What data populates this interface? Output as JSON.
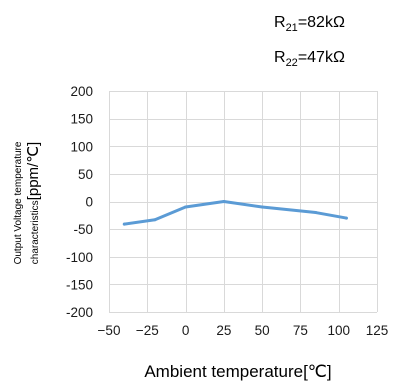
{
  "chart_data": {
    "type": "line",
    "annotations": [
      {
        "main": "R",
        "sub": "21",
        "rest": "=82kΩ"
      },
      {
        "main": "R",
        "sub": "22",
        "rest": "=47kΩ"
      }
    ],
    "xlabel": "Ambient temperature[℃]",
    "ylabel_line1": "Output Voltage temperature",
    "ylabel_line2_small": "characteristics",
    "ylabel_line2_large": "[ppm/℃]",
    "xlim": [
      -50,
      125
    ],
    "ylim": [
      -200,
      200
    ],
    "xticks": [
      -50,
      -25,
      0,
      25,
      50,
      75,
      100,
      125
    ],
    "xtick_labels": [
      "−50",
      "−25",
      "0",
      "25",
      "50",
      "75",
      "100",
      "125"
    ],
    "yticks": [
      200,
      150,
      100,
      50,
      0,
      -50,
      -100,
      -150,
      -200
    ],
    "ytick_labels": [
      "200",
      "150",
      "100",
      "50",
      "0",
      "-50",
      "-100",
      "-150",
      "-200"
    ],
    "grid": true,
    "line_color": "#5b9bd5",
    "grid_color": "#d9d9d9",
    "series": [
      {
        "x": [
          -40,
          -20,
          0,
          25,
          50,
          85,
          105
        ],
        "y": [
          -41,
          -33,
          -10,
          0,
          -10,
          -20,
          -30
        ]
      }
    ]
  }
}
